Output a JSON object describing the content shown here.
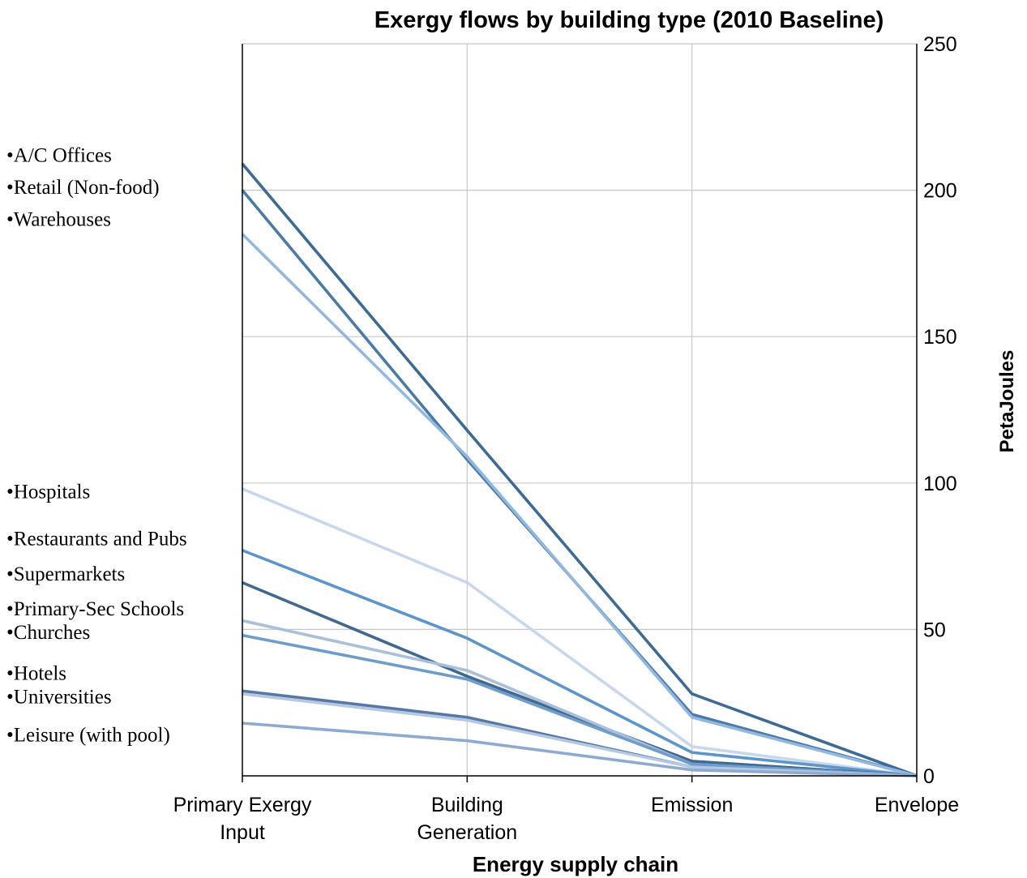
{
  "chart_data": {
    "type": "line",
    "title": "Exergy flows by building type (2010 Baseline)",
    "xlabel": "Energy supply chain",
    "ylabel": "PetaJoules",
    "categories": [
      [
        "Primary Exergy",
        "Input"
      ],
      [
        "Building",
        "Generation"
      ],
      [
        "Emission"
      ],
      [
        "Envelope"
      ]
    ],
    "y_axis_side": "right",
    "ylim": [
      0,
      250
    ],
    "yticks": [
      0,
      50,
      100,
      150,
      200,
      250
    ],
    "grid": true,
    "label_bullet": "•",
    "series": [
      {
        "name": "A/C Offices",
        "values": [
          209,
          118,
          28,
          0
        ],
        "color": "#3d6b96"
      },
      {
        "name": "Retail (Non-food)",
        "values": [
          200,
          108,
          21,
          0
        ],
        "color": "#4a7aa8"
      },
      {
        "name": "Warehouses",
        "values": [
          185,
          109,
          20,
          0
        ],
        "color": "#93b8e0"
      },
      {
        "name": "Hospitals",
        "values": [
          98,
          66,
          10,
          0
        ],
        "color": "#c8d8ec"
      },
      {
        "name": "Restaurants and Pubs",
        "values": [
          77,
          47,
          8,
          0
        ],
        "color": "#5b95cc"
      },
      {
        "name": "Supermarkets",
        "values": [
          66,
          34,
          5,
          0
        ],
        "color": "#41688f"
      },
      {
        "name": "Primary-Sec Schools",
        "values": [
          53,
          36,
          4,
          0
        ],
        "color": "#a9bfda"
      },
      {
        "name": "Churches",
        "values": [
          48,
          33,
          4,
          0
        ],
        "color": "#6e9dcd"
      },
      {
        "name": "Hotels",
        "values": [
          29,
          20,
          3,
          0
        ],
        "color": "#5578a5"
      },
      {
        "name": "Universities",
        "values": [
          28,
          19,
          3,
          0
        ],
        "color": "#b4c9e1"
      },
      {
        "name": "Leisure (with pool)",
        "values": [
          18,
          12,
          2,
          0
        ],
        "color": "#8eaad1"
      }
    ],
    "labels_left": [
      {
        "text": "A/C Offices",
        "y": 212
      },
      {
        "text": "Retail (Non-food)",
        "y": 201
      },
      {
        "text": "Warehouses",
        "y": 190
      },
      {
        "text": "Hospitals",
        "y": 97
      },
      {
        "text": "Restaurants and Pubs",
        "y": 81
      },
      {
        "text": "Supermarkets",
        "y": 69
      },
      {
        "text": "Primary-Sec Schools",
        "y": 57
      },
      {
        "text": "Churches",
        "y": 49
      },
      {
        "text": "Hotels",
        "y": 35
      },
      {
        "text": "Universities",
        "y": 27
      },
      {
        "text": "Leisure (with pool)",
        "y": 14
      }
    ]
  }
}
